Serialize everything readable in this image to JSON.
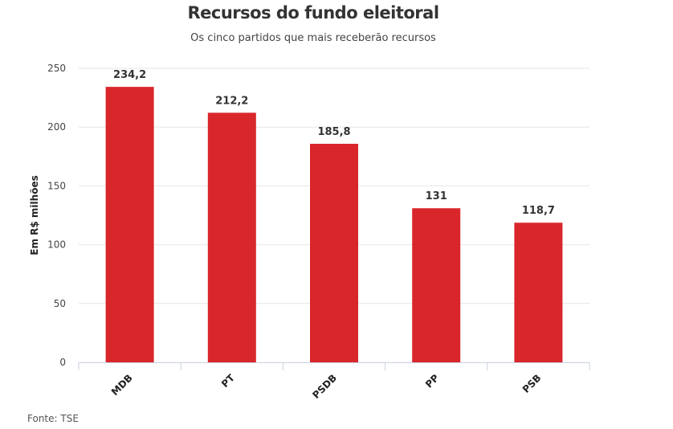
{
  "chart_data": {
    "type": "bar",
    "title": "Recursos do fundo eleitoral",
    "subtitle": "Os cinco partidos que mais receberão recursos",
    "xlabel": "",
    "ylabel": "Em R$ milhões",
    "categories": [
      "MDB",
      "PT",
      "PSDB",
      "PP",
      "PSB"
    ],
    "values": [
      234.2,
      212.2,
      185.8,
      131,
      118.7
    ],
    "value_labels": [
      "234,2",
      "212,2",
      "185,8",
      "131",
      "118,7"
    ],
    "yticks": [
      0,
      50,
      100,
      150,
      200,
      250
    ],
    "ylim": [
      0,
      250
    ],
    "grid": true,
    "legend": "none",
    "bar_color": "#d9262b"
  },
  "source": "Fonte: TSE"
}
